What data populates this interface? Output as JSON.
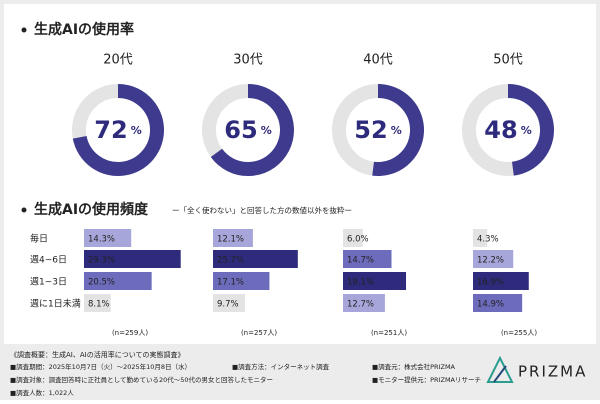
{
  "usage": {
    "title": "生成AIの使用率",
    "unit": "%",
    "track_color": "#e4e4e4",
    "charts": [
      {
        "type": "pie",
        "title": "20代",
        "value": 72,
        "color": "#3e3b8f"
      },
      {
        "type": "pie",
        "title": "30代",
        "value": 65,
        "color": "#3e3b8f"
      },
      {
        "type": "pie",
        "title": "40代",
        "value": 52,
        "color": "#3e3b8f"
      },
      {
        "type": "pie",
        "title": "50代",
        "value": 48,
        "color": "#3e3b8f"
      }
    ]
  },
  "frequency": {
    "title": "生成AIの使用頻度",
    "subtitle": "ー「全く使わない」と回答した方の数値以外を抜粋ー",
    "categories": [
      "毎日",
      "週4~6日",
      "週1~3日",
      "週に1日未満"
    ],
    "charts": [
      {
        "type": "bar",
        "values": [
          14.3,
          29.3,
          20.5,
          8.1
        ],
        "value_labels": [
          "14.3%",
          "29.3%",
          "20.5%",
          "8.1%"
        ],
        "colors": [
          "#a7a6da",
          "#2e2b7c",
          "#6d6bbb",
          "#e3e3e3"
        ],
        "note": "(n=259人)"
      },
      {
        "type": "bar",
        "values": [
          12.1,
          25.7,
          17.1,
          9.7
        ],
        "value_labels": [
          "12.1%",
          "25.7%",
          "17.1%",
          "9.7%"
        ],
        "colors": [
          "#a7a6da",
          "#2e2b7c",
          "#6d6bbb",
          "#e3e3e3"
        ],
        "note": "(n=257人)"
      },
      {
        "type": "bar",
        "values": [
          6.0,
          14.7,
          19.1,
          12.7
        ],
        "value_labels": [
          "6.0%",
          "14.7%",
          "19.1%",
          "12.7%"
        ],
        "colors": [
          "#e3e3e3",
          "#6d6bbb",
          "#2e2b7c",
          "#a7a6da"
        ],
        "note": "(n=251人)"
      },
      {
        "type": "bar",
        "values": [
          4.3,
          12.2,
          16.9,
          14.9
        ],
        "value_labels": [
          "4.3%",
          "12.2%",
          "16.9%",
          "14.9%"
        ],
        "colors": [
          "#e3e3e3",
          "#a7a6da",
          "#2e2b7c",
          "#6d6bbb"
        ],
        "note": "(n=255人)"
      }
    ]
  },
  "footer": {
    "heading": "《調査概要：生成AI、AIの活用率についての実態調査》",
    "items": [
      "■調査期間：2025年10月7日（火）〜2025年10月8日（水）",
      "■調査方法：インターネット調査",
      "■調査元：株式会社PRIZMA",
      "■調査対象：調査回答時に正社員として勤めている20代〜50代の男女と回答したモニター",
      "■モニター提供元：PRIZMAリサーチ",
      "■調査人数：1,022人"
    ],
    "logo": "PRIZMA"
  }
}
